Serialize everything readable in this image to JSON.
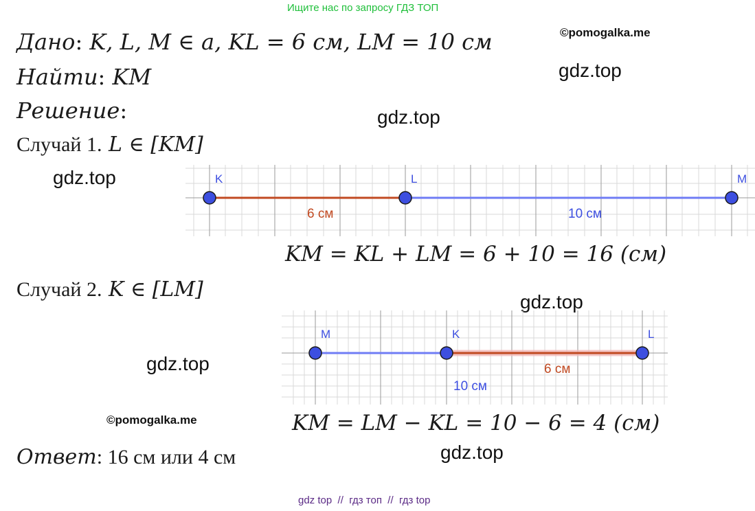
{
  "header": {
    "link_text": "Ищите нас по запросу ГДЗ ТОП"
  },
  "watermarks": {
    "copyright": "©pomogalka.me",
    "site": "gdz.top"
  },
  "given": {
    "label": "Дано",
    "colon": ":",
    "statement": "K, L, M ∈ a, KL = 6 см, LM  =  10 см"
  },
  "find": {
    "label": "Найти",
    "colon": ":",
    "statement": "KM"
  },
  "solution": {
    "label": "Решение",
    "colon": ":"
  },
  "case1": {
    "label": "Случай 1.",
    "condition": "L ∈ [KM]",
    "points": [
      "K",
      "L",
      "M"
    ],
    "segment_labels": [
      "6 см",
      "10 см"
    ],
    "formula": "KM = KL + LM = 6 + 10 = 16 (см)"
  },
  "case2": {
    "label": "Случай 2.",
    "condition": "K ∈ [LM]",
    "points": [
      "M",
      "K",
      "L"
    ],
    "segment_labels": [
      "10 см",
      "6 см"
    ],
    "formula": "KM = LM − KL = 10 − 6 = 4 (см)"
  },
  "answer": {
    "label": "Ответ",
    "colon": ":",
    "text": " 16 см или 4 см"
  },
  "footer": {
    "text": "gdz top  //  гдз топ  //  гдз top"
  },
  "colors": {
    "point_fill": "#3d4fe0",
    "segment_blue": "#6f7cf5",
    "segment_red": "#c14a22",
    "grid": "#d9d9d9"
  }
}
